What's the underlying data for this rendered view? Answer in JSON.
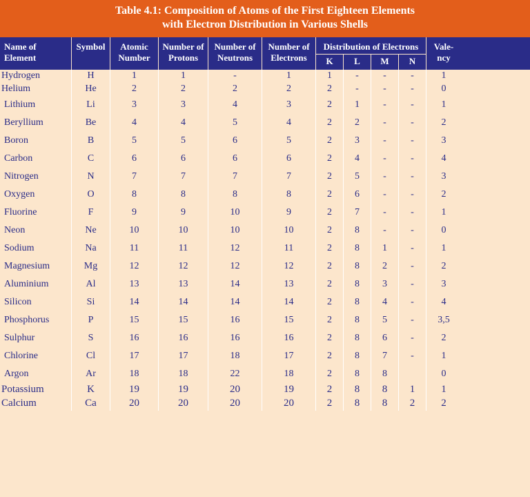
{
  "title": {
    "line1": "Table 4.1: Composition of Atoms of the First Eighteen Elements",
    "line2": "with Electron Distribution in Various Shells"
  },
  "headers": {
    "name": "Name of Element",
    "symbol": "Symbol",
    "atomic": "Atomic Number",
    "protons": "Number of Protons",
    "neutrons": "Number of Neutrons",
    "electrons": "Number of Electrons",
    "distribution": "Distribution of Electrons",
    "K": "K",
    "L": "L",
    "M": "M",
    "N": "N",
    "valency": "Vale-\nncy"
  },
  "rows": [
    {
      "name": "Hydrogen",
      "sym": "H",
      "atom": "1",
      "prot": "1",
      "neut": "-",
      "elec": "1",
      "k": "1",
      "l": "-",
      "m": "-",
      "n": "-",
      "val": "1"
    },
    {
      "name": "Helium",
      "sym": "He",
      "atom": "2",
      "prot": "2",
      "neut": "2",
      "elec": "2",
      "k": "2",
      "l": "-",
      "m": "-",
      "n": "-",
      "val": "0"
    },
    {
      "name": "Lithium",
      "sym": "Li",
      "atom": "3",
      "prot": "3",
      "neut": "4",
      "elec": "3",
      "k": "2",
      "l": "1",
      "m": "-",
      "n": "-",
      "val": "1"
    },
    {
      "name": "Beryllium",
      "sym": "Be",
      "atom": "4",
      "prot": "4",
      "neut": "5",
      "elec": "4",
      "k": "2",
      "l": "2",
      "m": "-",
      "n": "-",
      "val": "2"
    },
    {
      "name": "Boron",
      "sym": "B",
      "atom": "5",
      "prot": "5",
      "neut": "6",
      "elec": "5",
      "k": "2",
      "l": "3",
      "m": "-",
      "n": "-",
      "val": "3"
    },
    {
      "name": "Carbon",
      "sym": "C",
      "atom": "6",
      "prot": "6",
      "neut": "6",
      "elec": "6",
      "k": "2",
      "l": "4",
      "m": "-",
      "n": "-",
      "val": "4"
    },
    {
      "name": "Nitrogen",
      "sym": "N",
      "atom": "7",
      "prot": "7",
      "neut": "7",
      "elec": "7",
      "k": "2",
      "l": "5",
      "m": "-",
      "n": "-",
      "val": "3"
    },
    {
      "name": "Oxygen",
      "sym": "O",
      "atom": "8",
      "prot": "8",
      "neut": "8",
      "elec": "8",
      "k": "2",
      "l": "6",
      "m": "-",
      "n": "-",
      "val": "2"
    },
    {
      "name": "Fluorine",
      "sym": "F",
      "atom": "9",
      "prot": "9",
      "neut": "10",
      "elec": "9",
      "k": "2",
      "l": "7",
      "m": "-",
      "n": "-",
      "val": "1"
    },
    {
      "name": "Neon",
      "sym": "Ne",
      "atom": "10",
      "prot": "10",
      "neut": "10",
      "elec": "10",
      "k": "2",
      "l": "8",
      "m": "-",
      "n": "-",
      "val": "0"
    },
    {
      "name": "Sodium",
      "sym": "Na",
      "atom": "11",
      "prot": "11",
      "neut": "12",
      "elec": "11",
      "k": "2",
      "l": "8",
      "m": "1",
      "n": "-",
      "val": "1"
    },
    {
      "name": "Magnesium",
      "sym": "Mg",
      "atom": "12",
      "prot": "12",
      "neut": "12",
      "elec": "12",
      "k": "2",
      "l": "8",
      "m": "2",
      "n": "-",
      "val": "2"
    },
    {
      "name": "Aluminium",
      "sym": "Al",
      "atom": "13",
      "prot": "13",
      "neut": "14",
      "elec": "13",
      "k": "2",
      "l": "8",
      "m": "3",
      "n": "-",
      "val": "3"
    },
    {
      "name": "Silicon",
      "sym": "Si",
      "atom": "14",
      "prot": "14",
      "neut": "14",
      "elec": "14",
      "k": "2",
      "l": "8",
      "m": "4",
      "n": "-",
      "val": "4"
    },
    {
      "name": "Phosphorus",
      "sym": "P",
      "atom": "15",
      "prot": "15",
      "neut": "16",
      "elec": "15",
      "k": "2",
      "l": "8",
      "m": "5",
      "n": "-",
      "val": "3,5"
    },
    {
      "name": "Sulphur",
      "sym": "S",
      "atom": "16",
      "prot": "16",
      "neut": "16",
      "elec": "16",
      "k": "2",
      "l": "8",
      "m": "6",
      "n": "-",
      "val": "2"
    },
    {
      "name": "Chlorine",
      "sym": "Cl",
      "atom": "17",
      "prot": "17",
      "neut": "18",
      "elec": "17",
      "k": "2",
      "l": "8",
      "m": "7",
      "n": "-",
      "val": "1"
    },
    {
      "name": "Argon",
      "sym": "Ar",
      "atom": "18",
      "prot": "18",
      "neut": "22",
      "elec": "18",
      "k": "2",
      "l": "8",
      "m": "8",
      "n": "",
      "val": "0"
    }
  ],
  "extra_rows": [
    {
      "name": "Potassium",
      "sym": "K",
      "atom": "19",
      "prot": "19",
      "neut": "20",
      "elec": "19",
      "k": "2",
      "l": "8",
      "m": "8",
      "n": "1",
      "val": "1"
    },
    {
      "name": "Calcium",
      "sym": "Ca",
      "atom": "20",
      "prot": "20",
      "neut": "20",
      "elec": "20",
      "k": "2",
      "l": "8",
      "m": "8",
      "n": "2",
      "val": "2"
    }
  ],
  "colors": {
    "title_bg": "#e35e1b",
    "header_bg": "#2a2c88",
    "body_bg": "#fce6cc",
    "text": "#2a2c88",
    "border": "#ffffff"
  }
}
